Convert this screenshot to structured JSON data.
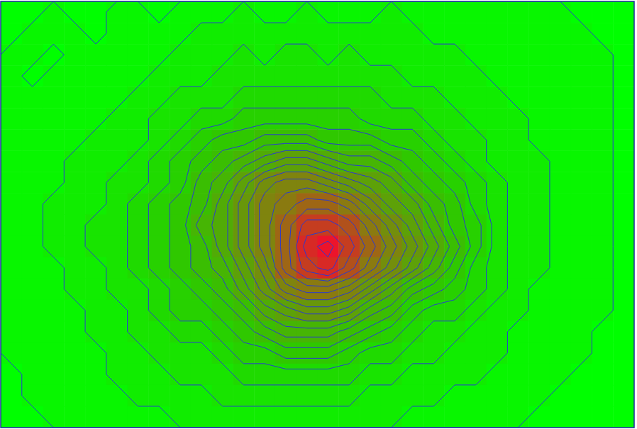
{
  "chart_data": {
    "type": "contour",
    "tick_labels": false,
    "zlim": [
      0,
      20
    ],
    "levels": [
      0.5,
      1.5,
      2.5,
      3.5,
      4.5,
      5.5,
      6.5,
      7.5,
      8.5,
      9.5,
      10.5,
      11.5,
      12.5,
      13.5,
      14.5,
      15.5,
      16.5,
      17.5,
      18.5
    ],
    "z": [
      [
        0,
        0,
        1,
        0,
        0,
        1,
        1,
        0,
        1,
        1,
        1,
        2,
        1,
        1,
        2,
        1,
        1,
        1,
        2,
        1,
        1,
        1,
        1,
        1,
        1,
        1,
        1,
        0,
        0,
        0
      ],
      [
        0,
        1,
        1,
        1,
        0,
        1,
        1,
        1,
        1,
        2,
        2,
        2,
        2,
        2,
        2,
        2,
        2,
        2,
        2,
        2,
        1,
        1,
        1,
        1,
        1,
        1,
        1,
        1,
        0,
        0
      ],
      [
        1,
        1,
        0,
        1,
        1,
        1,
        1,
        1,
        2,
        2,
        2,
        3,
        2,
        3,
        3,
        2,
        3,
        2,
        2,
        2,
        2,
        2,
        1,
        1,
        1,
        1,
        1,
        1,
        1,
        0
      ],
      [
        1,
        0,
        1,
        1,
        1,
        1,
        1,
        2,
        2,
        2,
        3,
        3,
        3,
        3,
        3,
        3,
        3,
        3,
        3,
        2,
        2,
        2,
        2,
        1,
        1,
        1,
        1,
        1,
        1,
        0
      ],
      [
        1,
        1,
        1,
        1,
        1,
        1,
        2,
        2,
        3,
        3,
        3,
        4,
        4,
        4,
        4,
        4,
        4,
        4,
        3,
        3,
        3,
        2,
        2,
        2,
        1,
        1,
        1,
        1,
        1,
        0
      ],
      [
        1,
        1,
        1,
        1,
        1,
        2,
        2,
        3,
        3,
        4,
        4,
        5,
        5,
        5,
        5,
        5,
        5,
        4,
        4,
        4,
        3,
        3,
        2,
        2,
        2,
        1,
        1,
        1,
        1,
        0
      ],
      [
        1,
        1,
        1,
        1,
        2,
        2,
        2,
        3,
        4,
        5,
        6,
        6,
        7,
        7,
        7,
        6,
        6,
        6,
        5,
        5,
        4,
        3,
        3,
        2,
        2,
        1,
        1,
        1,
        1,
        0
      ],
      [
        1,
        1,
        1,
        2,
        2,
        2,
        3,
        4,
        5,
        6,
        7,
        8,
        9,
        10,
        10,
        9,
        8,
        8,
        7,
        6,
        5,
        4,
        3,
        2,
        2,
        2,
        1,
        1,
        1,
        0
      ],
      [
        1,
        1,
        1,
        2,
        2,
        3,
        3,
        4,
        5,
        7,
        8,
        10,
        12,
        13,
        13,
        12,
        11,
        10,
        9,
        7,
        6,
        5,
        4,
        3,
        2,
        2,
        1,
        1,
        1,
        0
      ],
      [
        1,
        1,
        2,
        2,
        2,
        3,
        4,
        5,
        6,
        7,
        9,
        11,
        13,
        14,
        15,
        15,
        14,
        12,
        10,
        9,
        7,
        6,
        4,
        3,
        2,
        2,
        1,
        1,
        1,
        0
      ],
      [
        1,
        1,
        2,
        2,
        3,
        3,
        4,
        5,
        6,
        8,
        9,
        11,
        13,
        15,
        17,
        17,
        16,
        14,
        12,
        10,
        8,
        6,
        5,
        3,
        2,
        2,
        1,
        1,
        1,
        0
      ],
      [
        1,
        1,
        2,
        2,
        3,
        3,
        4,
        5,
        6,
        7,
        9,
        11,
        13,
        15,
        18,
        19,
        17,
        15,
        13,
        11,
        9,
        7,
        5,
        3,
        2,
        2,
        1,
        1,
        1,
        0
      ],
      [
        1,
        1,
        1,
        2,
        2,
        3,
        4,
        5,
        6,
        7,
        8,
        10,
        12,
        15,
        17,
        18,
        16,
        14,
        12,
        10,
        8,
        6,
        4,
        3,
        2,
        2,
        1,
        1,
        1,
        0
      ],
      [
        1,
        1,
        1,
        2,
        2,
        3,
        3,
        4,
        5,
        6,
        7,
        9,
        11,
        13,
        14,
        14,
        13,
        11,
        9,
        7,
        6,
        5,
        4,
        3,
        2,
        1,
        1,
        1,
        1,
        0
      ],
      [
        1,
        1,
        1,
        1,
        2,
        2,
        3,
        4,
        5,
        5,
        6,
        7,
        9,
        10,
        11,
        11,
        10,
        8,
        7,
        5,
        4,
        4,
        3,
        2,
        2,
        1,
        1,
        1,
        1,
        0
      ],
      [
        1,
        1,
        1,
        1,
        2,
        2,
        3,
        3,
        4,
        4,
        5,
        6,
        7,
        8,
        8,
        8,
        7,
        6,
        5,
        4,
        3,
        3,
        2,
        2,
        1,
        1,
        1,
        1,
        0,
        0
      ],
      [
        1,
        1,
        1,
        1,
        1,
        2,
        2,
        3,
        3,
        3,
        4,
        5,
        5,
        6,
        6,
        6,
        5,
        4,
        4,
        3,
        3,
        2,
        2,
        2,
        1,
        1,
        1,
        1,
        0,
        0
      ],
      [
        0,
        1,
        1,
        1,
        1,
        2,
        2,
        2,
        3,
        3,
        3,
        4,
        4,
        4,
        4,
        4,
        4,
        3,
        3,
        2,
        2,
        2,
        2,
        1,
        1,
        1,
        1,
        0,
        0,
        0
      ],
      [
        0,
        1,
        1,
        1,
        1,
        1,
        2,
        2,
        2,
        2,
        3,
        3,
        3,
        3,
        3,
        3,
        3,
        2,
        2,
        2,
        2,
        1,
        1,
        1,
        1,
        1,
        0,
        0,
        0,
        0
      ],
      [
        0,
        0,
        1,
        1,
        1,
        1,
        1,
        1,
        2,
        2,
        2,
        2,
        2,
        2,
        2,
        2,
        2,
        2,
        2,
        1,
        1,
        1,
        1,
        1,
        1,
        0,
        0,
        0,
        0,
        0
      ]
    ]
  }
}
